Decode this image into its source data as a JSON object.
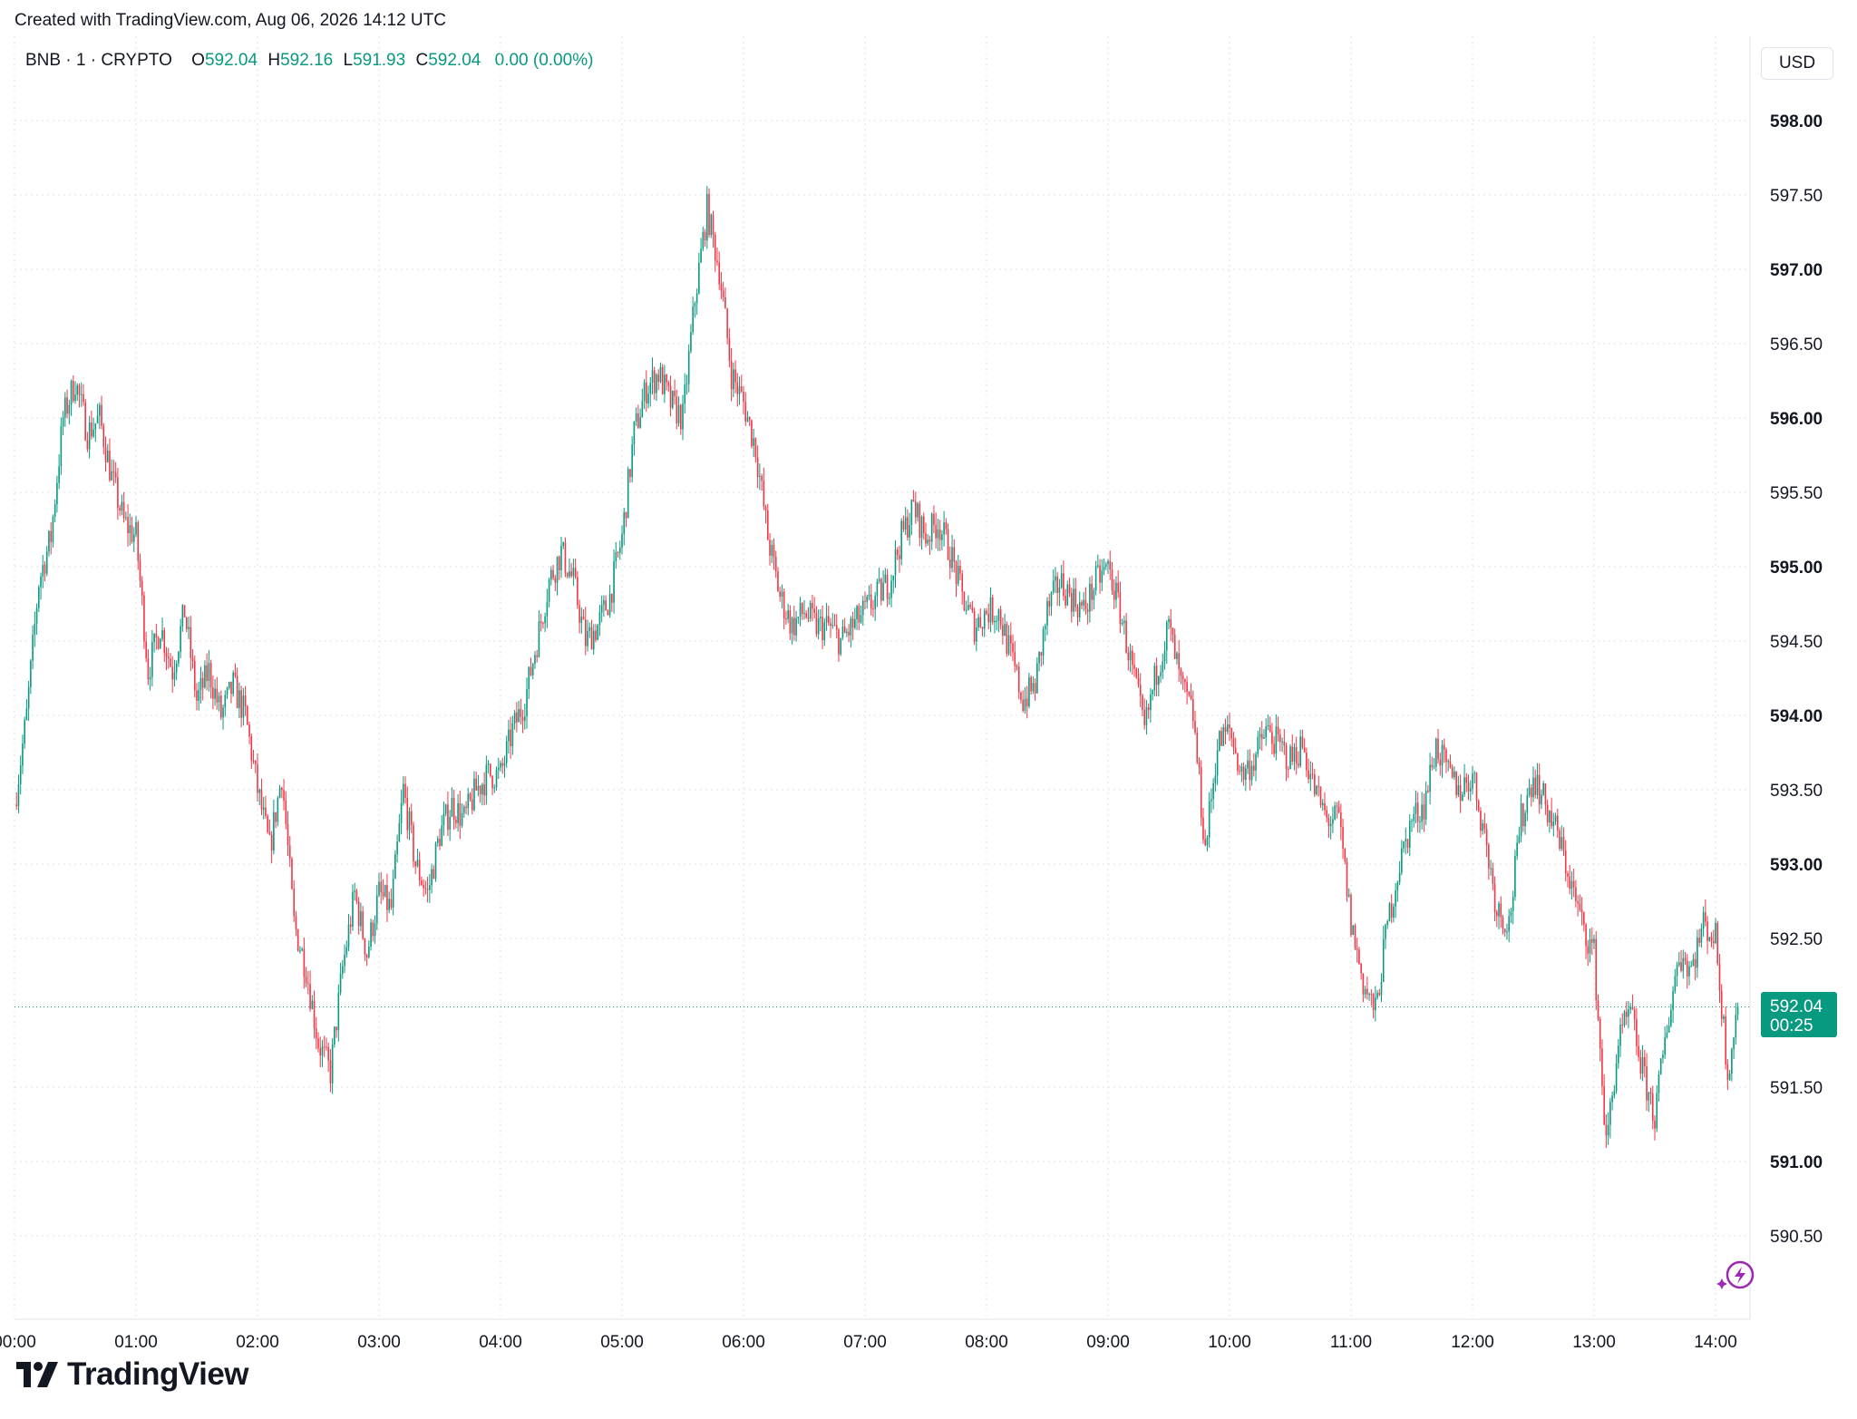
{
  "header": {
    "created_text": "Created with TradingView.com, Aug 06, 2026 14:12 UTC"
  },
  "legend": {
    "symbol": "BNB · 1 · CRYPTO",
    "open_label": "O",
    "open": "592.04",
    "high_label": "H",
    "high": "592.16",
    "low_label": "L",
    "low": "591.93",
    "close_label": "C",
    "close": "592.04",
    "change": "0.00 (0.00%)"
  },
  "currency_button": "USD",
  "price_marker": {
    "price": "592.04",
    "countdown": "00:25"
  },
  "footer": {
    "brand": "TradingView"
  },
  "colors": {
    "up": "#089981",
    "down": "#f23645",
    "grid": "#e0e3eb",
    "last_price": "#089981",
    "bolt": "#9c27b0"
  },
  "icons": {
    "logo": "tradingview-logo-icon",
    "bolt": "lightning-bolt-icon"
  },
  "chart_data": {
    "type": "candlestick",
    "symbol": "BNB",
    "interval": "1",
    "currency": "USD",
    "ylim": [
      590.25,
      598.35
    ],
    "y_ticks": [
      "598.00",
      "597.50",
      "597.00",
      "596.50",
      "596.00",
      "595.50",
      "595.00",
      "594.50",
      "594.00",
      "593.50",
      "593.00",
      "592.50",
      "591.50",
      "591.00",
      "590.50"
    ],
    "y_ticks_bold": [
      "598.00",
      "597.00",
      "596.00",
      "595.00",
      "594.00",
      "593.00",
      "591.00"
    ],
    "x_ticks": [
      "00:00",
      "01:00",
      "02:00",
      "03:00",
      "04:00",
      "05:00",
      "06:00",
      "07:00",
      "08:00",
      "09:00",
      "10:00",
      "11:00",
      "12:00",
      "13:00",
      "14:00"
    ],
    "x_range_hours": [
      0.0,
      14.2
    ],
    "last_price": 592.04,
    "grid": true,
    "price_path": [
      {
        "t": 0.0,
        "p": 593.4
      },
      {
        "t": 0.1,
        "p": 594.0
      },
      {
        "t": 0.2,
        "p": 594.9
      },
      {
        "t": 0.3,
        "p": 595.2
      },
      {
        "t": 0.4,
        "p": 596.0
      },
      {
        "t": 0.5,
        "p": 596.25
      },
      {
        "t": 0.6,
        "p": 595.9
      },
      {
        "t": 0.7,
        "p": 596.0
      },
      {
        "t": 0.8,
        "p": 595.6
      },
      {
        "t": 0.9,
        "p": 595.3
      },
      {
        "t": 1.0,
        "p": 595.2
      },
      {
        "t": 1.1,
        "p": 594.3
      },
      {
        "t": 1.2,
        "p": 594.6
      },
      {
        "t": 1.3,
        "p": 594.3
      },
      {
        "t": 1.4,
        "p": 594.7
      },
      {
        "t": 1.5,
        "p": 594.1
      },
      {
        "t": 1.6,
        "p": 594.3
      },
      {
        "t": 1.7,
        "p": 594.0
      },
      {
        "t": 1.8,
        "p": 594.2
      },
      {
        "t": 1.9,
        "p": 594.0
      },
      {
        "t": 2.0,
        "p": 593.5
      },
      {
        "t": 2.1,
        "p": 593.1
      },
      {
        "t": 2.2,
        "p": 593.6
      },
      {
        "t": 2.3,
        "p": 592.6
      },
      {
        "t": 2.4,
        "p": 592.3
      },
      {
        "t": 2.5,
        "p": 591.8
      },
      {
        "t": 2.6,
        "p": 591.6
      },
      {
        "t": 2.7,
        "p": 592.3
      },
      {
        "t": 2.8,
        "p": 592.8
      },
      {
        "t": 2.9,
        "p": 592.4
      },
      {
        "t": 3.0,
        "p": 592.8
      },
      {
        "t": 3.1,
        "p": 592.7
      },
      {
        "t": 3.2,
        "p": 593.5
      },
      {
        "t": 3.3,
        "p": 593.0
      },
      {
        "t": 3.4,
        "p": 592.8
      },
      {
        "t": 3.5,
        "p": 593.2
      },
      {
        "t": 3.6,
        "p": 593.4
      },
      {
        "t": 3.7,
        "p": 593.3
      },
      {
        "t": 3.8,
        "p": 593.5
      },
      {
        "t": 3.9,
        "p": 593.6
      },
      {
        "t": 4.0,
        "p": 593.6
      },
      {
        "t": 4.1,
        "p": 593.9
      },
      {
        "t": 4.2,
        "p": 594.1
      },
      {
        "t": 4.3,
        "p": 594.5
      },
      {
        "t": 4.4,
        "p": 594.9
      },
      {
        "t": 4.5,
        "p": 595.1
      },
      {
        "t": 4.6,
        "p": 594.9
      },
      {
        "t": 4.7,
        "p": 594.5
      },
      {
        "t": 4.8,
        "p": 594.6
      },
      {
        "t": 4.9,
        "p": 594.8
      },
      {
        "t": 5.0,
        "p": 595.2
      },
      {
        "t": 5.1,
        "p": 595.9
      },
      {
        "t": 5.2,
        "p": 596.2
      },
      {
        "t": 5.3,
        "p": 596.3
      },
      {
        "t": 5.4,
        "p": 596.1
      },
      {
        "t": 5.5,
        "p": 596.0
      },
      {
        "t": 5.6,
        "p": 596.8
      },
      {
        "t": 5.7,
        "p": 597.4
      },
      {
        "t": 5.8,
        "p": 597.0
      },
      {
        "t": 5.9,
        "p": 596.3
      },
      {
        "t": 6.0,
        "p": 596.1
      },
      {
        "t": 6.1,
        "p": 595.8
      },
      {
        "t": 6.2,
        "p": 595.2
      },
      {
        "t": 6.3,
        "p": 594.8
      },
      {
        "t": 6.4,
        "p": 594.6
      },
      {
        "t": 6.5,
        "p": 594.7
      },
      {
        "t": 6.6,
        "p": 594.6
      },
      {
        "t": 6.7,
        "p": 594.6
      },
      {
        "t": 6.8,
        "p": 594.5
      },
      {
        "t": 6.9,
        "p": 594.6
      },
      {
        "t": 7.0,
        "p": 594.7
      },
      {
        "t": 7.1,
        "p": 594.8
      },
      {
        "t": 7.2,
        "p": 594.9
      },
      {
        "t": 7.3,
        "p": 595.2
      },
      {
        "t": 7.4,
        "p": 595.4
      },
      {
        "t": 7.5,
        "p": 595.2
      },
      {
        "t": 7.6,
        "p": 595.3
      },
      {
        "t": 7.7,
        "p": 595.1
      },
      {
        "t": 7.8,
        "p": 594.8
      },
      {
        "t": 7.9,
        "p": 594.6
      },
      {
        "t": 8.0,
        "p": 594.7
      },
      {
        "t": 8.1,
        "p": 594.7
      },
      {
        "t": 8.2,
        "p": 594.4
      },
      {
        "t": 8.3,
        "p": 594.1
      },
      {
        "t": 8.4,
        "p": 594.2
      },
      {
        "t": 8.5,
        "p": 594.7
      },
      {
        "t": 8.6,
        "p": 594.9
      },
      {
        "t": 8.7,
        "p": 594.8
      },
      {
        "t": 8.8,
        "p": 594.7
      },
      {
        "t": 8.9,
        "p": 594.9
      },
      {
        "t": 9.0,
        "p": 595.0
      },
      {
        "t": 9.1,
        "p": 594.7
      },
      {
        "t": 9.2,
        "p": 594.3
      },
      {
        "t": 9.3,
        "p": 593.9
      },
      {
        "t": 9.4,
        "p": 594.3
      },
      {
        "t": 9.5,
        "p": 594.6
      },
      {
        "t": 9.6,
        "p": 594.2
      },
      {
        "t": 9.7,
        "p": 594.0
      },
      {
        "t": 9.8,
        "p": 593.1
      },
      {
        "t": 9.9,
        "p": 593.8
      },
      {
        "t": 10.0,
        "p": 593.9
      },
      {
        "t": 10.1,
        "p": 593.6
      },
      {
        "t": 10.2,
        "p": 593.7
      },
      {
        "t": 10.3,
        "p": 593.9
      },
      {
        "t": 10.4,
        "p": 593.8
      },
      {
        "t": 10.5,
        "p": 593.7
      },
      {
        "t": 10.6,
        "p": 593.8
      },
      {
        "t": 10.7,
        "p": 593.5
      },
      {
        "t": 10.8,
        "p": 593.3
      },
      {
        "t": 10.9,
        "p": 593.3
      },
      {
        "t": 11.0,
        "p": 592.6
      },
      {
        "t": 11.1,
        "p": 592.2
      },
      {
        "t": 11.2,
        "p": 592.0
      },
      {
        "t": 11.3,
        "p": 592.6
      },
      {
        "t": 11.4,
        "p": 593.0
      },
      {
        "t": 11.5,
        "p": 593.3
      },
      {
        "t": 11.6,
        "p": 593.4
      },
      {
        "t": 11.7,
        "p": 593.8
      },
      {
        "t": 11.8,
        "p": 593.6
      },
      {
        "t": 11.9,
        "p": 593.5
      },
      {
        "t": 12.0,
        "p": 593.6
      },
      {
        "t": 12.1,
        "p": 593.2
      },
      {
        "t": 12.2,
        "p": 592.7
      },
      {
        "t": 12.3,
        "p": 592.6
      },
      {
        "t": 12.4,
        "p": 593.3
      },
      {
        "t": 12.5,
        "p": 593.6
      },
      {
        "t": 12.6,
        "p": 593.4
      },
      {
        "t": 12.7,
        "p": 593.2
      },
      {
        "t": 12.8,
        "p": 592.9
      },
      {
        "t": 12.9,
        "p": 592.6
      },
      {
        "t": 13.0,
        "p": 592.4
      },
      {
        "t": 13.1,
        "p": 591.1
      },
      {
        "t": 13.2,
        "p": 591.8
      },
      {
        "t": 13.3,
        "p": 592.0
      },
      {
        "t": 13.4,
        "p": 591.6
      },
      {
        "t": 13.5,
        "p": 591.3
      },
      {
        "t": 13.6,
        "p": 591.9
      },
      {
        "t": 13.7,
        "p": 592.4
      },
      {
        "t": 13.8,
        "p": 592.3
      },
      {
        "t": 13.9,
        "p": 592.6
      },
      {
        "t": 14.0,
        "p": 592.5
      },
      {
        "t": 14.1,
        "p": 591.6
      },
      {
        "t": 14.18,
        "p": 592.04
      }
    ]
  }
}
